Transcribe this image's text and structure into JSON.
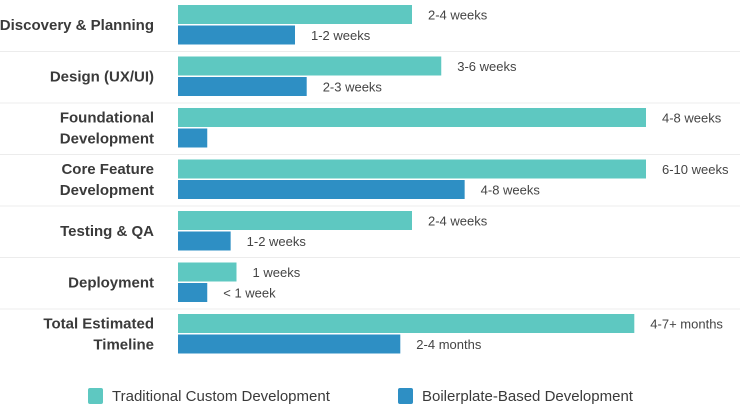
{
  "chart_data": {
    "type": "bar",
    "orientation": "horizontal",
    "grid": false,
    "legend_position": "bottom",
    "xlim": [
      0,
      10
    ],
    "categories": [
      [
        "Discovery & Planning"
      ],
      [
        "Design (UX/UI)"
      ],
      [
        "Foundational",
        "Development"
      ],
      [
        "Core Feature",
        "Development"
      ],
      [
        "Testing & QA"
      ],
      [
        "Deployment"
      ],
      [
        "Total Estimated",
        "Timeline"
      ]
    ],
    "series": [
      {
        "name": "Traditional Custom Development",
        "color": "#5ec8c1",
        "values": [
          4,
          4.5,
          8,
          8,
          4,
          1,
          7.8
        ],
        "labels": [
          "2-4 weeks",
          "3-6 weeks",
          "4-8 weeks",
          "6-10 weeks",
          "2-4 weeks",
          "1 weeks",
          "4-7+ months"
        ]
      },
      {
        "name": "Boilerplate-Based Development",
        "color": "#2e8fc4",
        "values": [
          2,
          2.2,
          0.5,
          4.9,
          0.9,
          0.5,
          3.8
        ],
        "labels": [
          "1-2 weeks",
          "2-3 weeks",
          "",
          "4-8 weeks",
          "1-2 weeks",
          "< 1 week",
          "2-4 months"
        ]
      }
    ]
  }
}
